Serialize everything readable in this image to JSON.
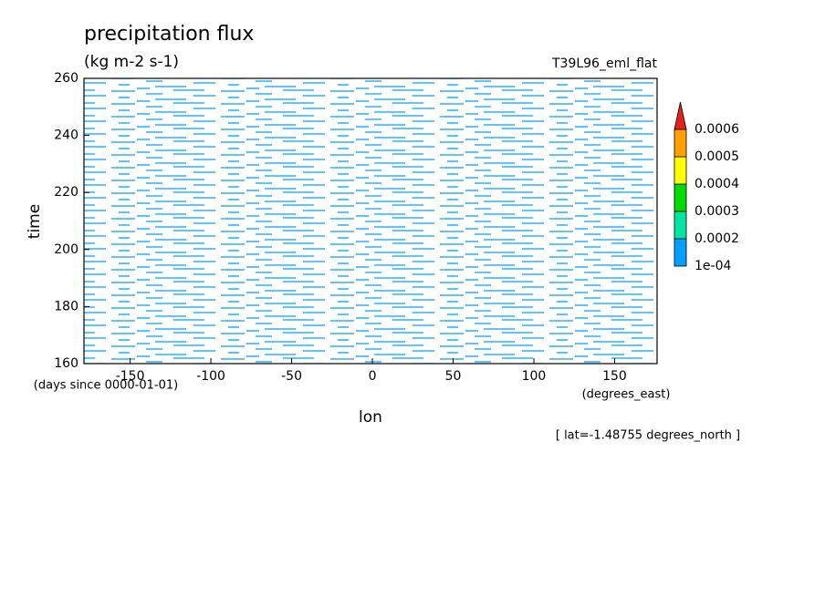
{
  "chart_data": {
    "type": "hovmoller",
    "title": "precipitation flux",
    "units": "(kg m-2 s-1)",
    "dataset": "T39L96_eml_flat",
    "x_label": "lon",
    "x_units": "(degrees_east)",
    "y_label": "time",
    "y_units": "(days since 0000-01-01)",
    "annotation": "[ lat=-1.48755 degrees_north ]",
    "xlim": [
      -178.6,
      176.3
    ],
    "xticks": [
      -150,
      -100,
      -50,
      0,
      50,
      100,
      150
    ],
    "ylim": [
      160,
      260
    ],
    "yticks": [
      160,
      180,
      200,
      220,
      240,
      260
    ],
    "colorbar": {
      "levels": [
        {
          "value": 0.0001,
          "label": "1e-04"
        },
        0.0002,
        0.0003,
        0.0004,
        0.0005,
        0.0006
      ],
      "colors": [
        "#00a0ff",
        "#00e6a0",
        "#00dc00",
        "#ffff00",
        "#ffa000",
        "#e61e1e"
      ],
      "extend": "max"
    }
  }
}
